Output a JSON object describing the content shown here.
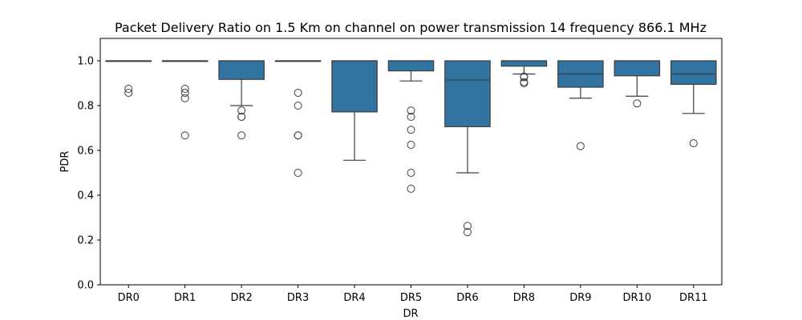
{
  "chart_data": {
    "type": "boxplot",
    "title": "Packet Delivery Ratio on 1.5 Km on channel on power transmission 14 frequency 866.1 MHz",
    "xlabel": "DR",
    "ylabel": "PDR",
    "ylim": [
      0.0,
      1.1
    ],
    "yticks": [
      0.0,
      0.2,
      0.4,
      0.6,
      0.8,
      1.0
    ],
    "ytick_labels": [
      "0.0",
      "0.2",
      "0.4",
      "0.6",
      "0.8",
      "1.0"
    ],
    "grid": false,
    "box_color": "#3274a1",
    "categories": [
      "DR0",
      "DR1",
      "DR2",
      "DR3",
      "DR4",
      "DR5",
      "DR6",
      "DR8",
      "DR9",
      "DR10",
      "DR11"
    ],
    "boxes": [
      {
        "q1": 1.0,
        "median": 1.0,
        "q3": 1.0,
        "whisker_low": 1.0,
        "whisker_high": 1.0,
        "outliers": [
          0.875,
          0.857
        ]
      },
      {
        "q1": 1.0,
        "median": 1.0,
        "q3": 1.0,
        "whisker_low": 1.0,
        "whisker_high": 1.0,
        "outliers": [
          0.875,
          0.857,
          0.833,
          0.667
        ]
      },
      {
        "q1": 0.917,
        "median": 1.0,
        "q3": 1.0,
        "whisker_low": 0.8,
        "whisker_high": 1.0,
        "outliers": [
          0.778,
          0.75,
          0.75,
          0.667
        ]
      },
      {
        "q1": 1.0,
        "median": 1.0,
        "q3": 1.0,
        "whisker_low": 1.0,
        "whisker_high": 1.0,
        "outliers": [
          0.857,
          0.8,
          0.667,
          0.667,
          0.5
        ]
      },
      {
        "q1": 0.772,
        "median": 1.0,
        "q3": 1.0,
        "whisker_low": 0.556,
        "whisker_high": 1.0,
        "outliers": []
      },
      {
        "q1": 0.955,
        "median": 1.0,
        "q3": 1.0,
        "whisker_low": 0.91,
        "whisker_high": 1.0,
        "outliers": [
          0.778,
          0.75,
          0.692,
          0.625,
          0.5,
          0.429
        ]
      },
      {
        "q1": 0.706,
        "median": 0.914,
        "q3": 1.0,
        "whisker_low": 0.5,
        "whisker_high": 1.0,
        "outliers": [
          0.263,
          0.235
        ]
      },
      {
        "q1": 0.976,
        "median": 1.0,
        "q3": 1.0,
        "whisker_low": 0.941,
        "whisker_high": 1.0,
        "outliers": [
          0.93,
          0.927,
          0.905,
          0.9
        ]
      },
      {
        "q1": 0.882,
        "median": 0.941,
        "q3": 1.0,
        "whisker_low": 0.833,
        "whisker_high": 1.0,
        "outliers": [
          0.619
        ]
      },
      {
        "q1": 0.933,
        "median": 1.0,
        "q3": 1.0,
        "whisker_low": 0.842,
        "whisker_high": 1.0,
        "outliers": [
          0.81
        ]
      },
      {
        "q1": 0.895,
        "median": 0.941,
        "q3": 1.0,
        "whisker_low": 0.765,
        "whisker_high": 1.0,
        "outliers": [
          0.632
        ]
      }
    ]
  }
}
